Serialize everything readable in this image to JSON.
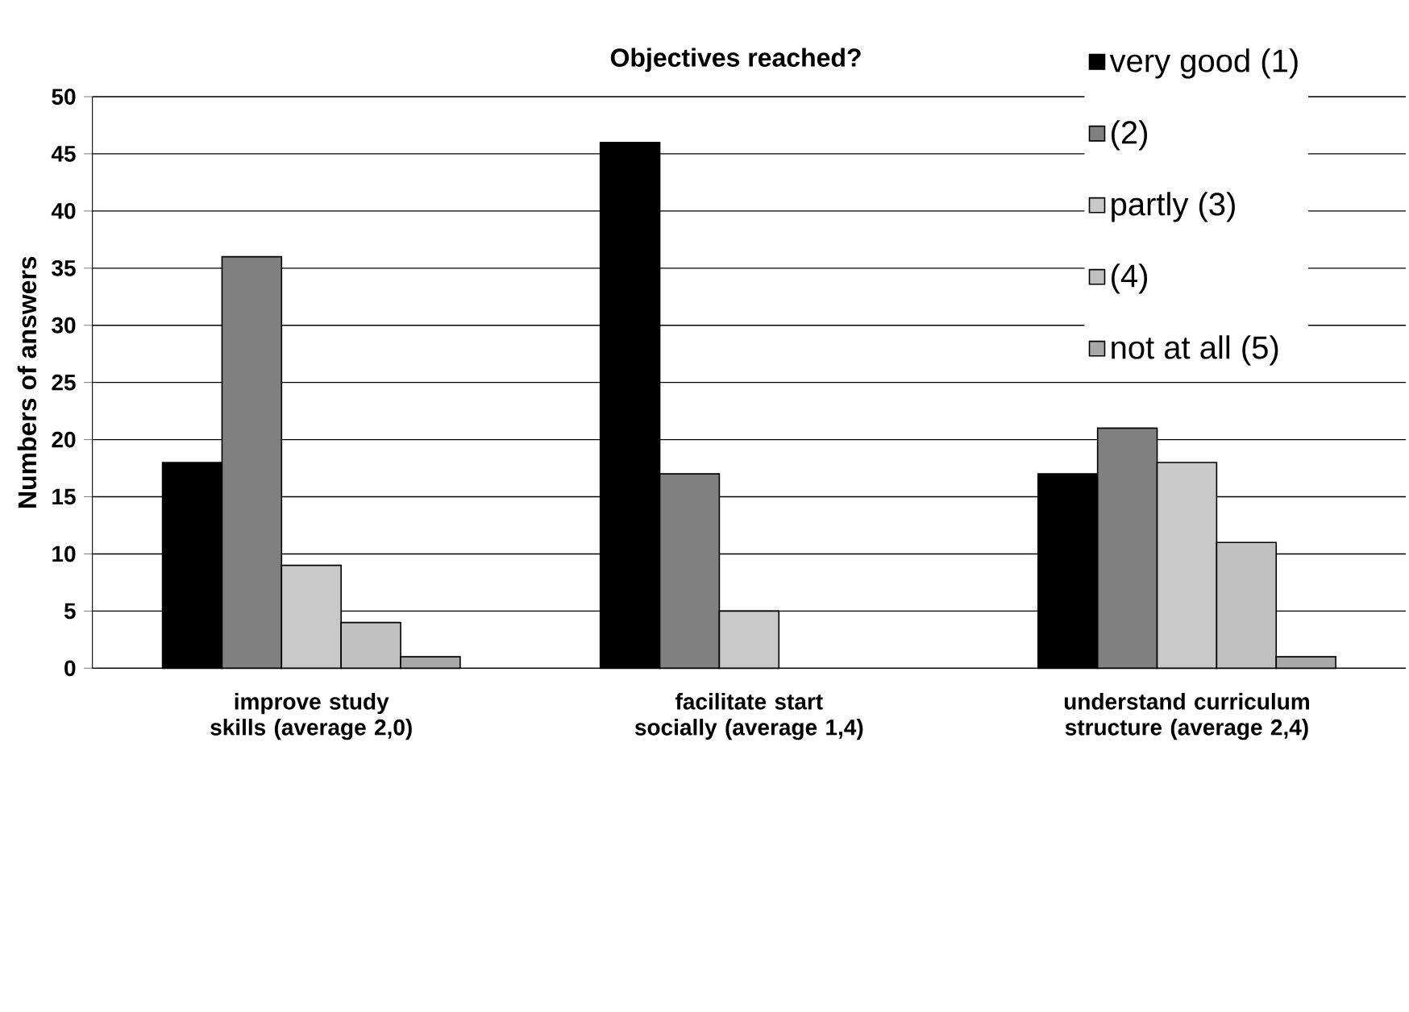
{
  "chart_data": {
    "type": "bar",
    "title": "Objectives reached?",
    "ylabel": "Numbers of answers",
    "categories": [
      "improve study skills (average 2,0)",
      "facilitate start socially (average 1,4)",
      "understand curriculum structure (average 2,4)"
    ],
    "series": [
      {
        "name": "very good (1)",
        "color": "#000000",
        "values": [
          18,
          46,
          17
        ]
      },
      {
        "name": "(2)",
        "color": "#808080",
        "values": [
          36,
          17,
          21
        ]
      },
      {
        "name": "partly (3)",
        "color": "#c8c8c8",
        "values": [
          9,
          5,
          18
        ]
      },
      {
        "name": "(4)",
        "color": "#c0c0c0",
        "values": [
          4,
          null,
          11
        ]
      },
      {
        "name": "not at all (5)",
        "color": "#a8a8a8",
        "values": [
          1,
          null,
          1
        ]
      }
    ],
    "ylim": [
      0,
      50
    ],
    "yticks": [
      0,
      5,
      10,
      15,
      20,
      25,
      30,
      35,
      40,
      45,
      50
    ],
    "grid": "y",
    "legend": "top right"
  }
}
